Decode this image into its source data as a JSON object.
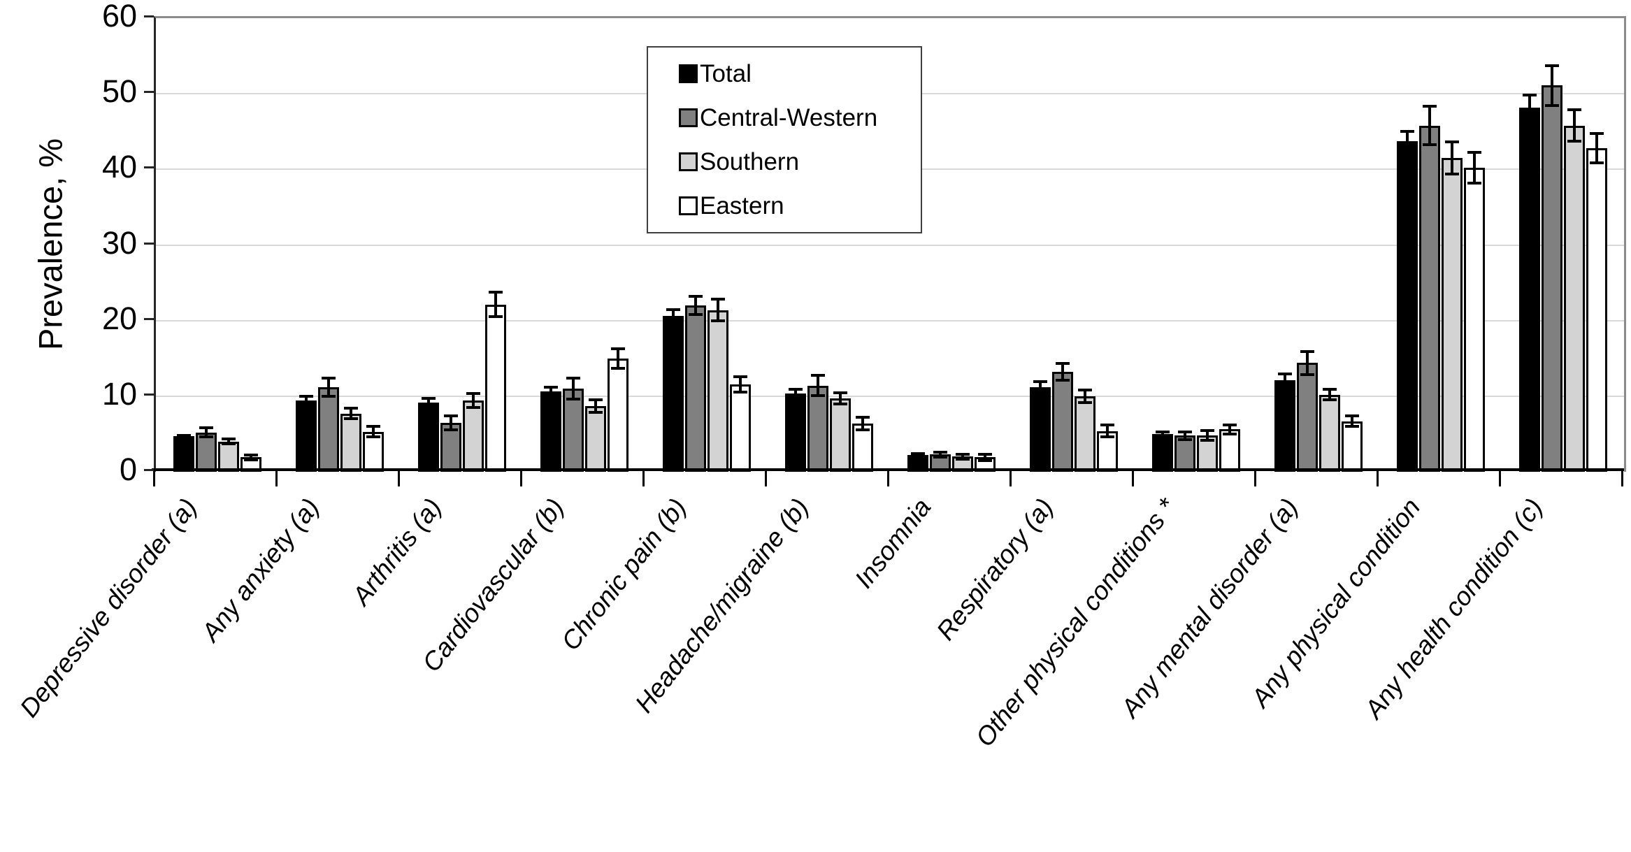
{
  "chart_data": {
    "type": "bar",
    "title": "",
    "ylabel": "Prevalence, %",
    "ylim": [
      0,
      60
    ],
    "yticks": [
      0,
      10,
      20,
      30,
      40,
      50,
      60
    ],
    "grid": true,
    "legend_position": "top-center-inside",
    "legend_entries": [
      "Total",
      "Central-Western",
      "Southern",
      "Eastern"
    ],
    "categories": [
      "Depressive disorder (a)",
      "Any anxiety (a)",
      "Arthritis (a)",
      "Cardiovascular (b)",
      "Chronic pain (b)",
      "Headache/migraine (b)",
      "Insomnia",
      "Respiratory (a)",
      "Other physical conditions *",
      "Any mental disorder (a)",
      "Any physical condition",
      "Any health condition (c)"
    ],
    "series": [
      {
        "name": "Total",
        "color": "#000000",
        "values": [
          4.7,
          9.4,
          9.2,
          10.6,
          20.6,
          10.4,
          2.2,
          11.2,
          5.0,
          12.1,
          43.7,
          48.2
        ],
        "errors": [
          0.3,
          0.8,
          0.7,
          0.8,
          1.0,
          0.7,
          0.4,
          0.9,
          0.5,
          1.0,
          1.5,
          1.8
        ]
      },
      {
        "name": "Central-Western",
        "color": "#808080",
        "values": [
          5.2,
          11.2,
          6.5,
          11.0,
          22.0,
          11.4,
          2.3,
          13.2,
          4.8,
          14.4,
          45.8,
          51.1
        ],
        "errors": [
          0.8,
          1.4,
          1.1,
          1.6,
          1.4,
          1.5,
          0.5,
          1.3,
          0.7,
          1.7,
          2.7,
          2.8
        ]
      },
      {
        "name": "Southern",
        "color": "#d3d3d3",
        "values": [
          4.0,
          7.7,
          9.4,
          8.7,
          21.4,
          9.7,
          2.0,
          10.0,
          4.8,
          10.2,
          41.5,
          45.8
        ],
        "errors": [
          0.5,
          0.9,
          1.1,
          1.0,
          1.6,
          0.9,
          0.5,
          1.0,
          0.8,
          0.9,
          2.3,
          2.3
        ]
      },
      {
        "name": "Eastern",
        "color": "#ffffff",
        "values": [
          1.9,
          5.3,
          22.1,
          15.0,
          11.6,
          6.4,
          1.9,
          5.4,
          5.6,
          6.7,
          40.2,
          42.8
        ],
        "errors": [
          0.5,
          0.9,
          1.8,
          1.5,
          1.2,
          1.0,
          0.6,
          1.0,
          0.8,
          0.9,
          2.2,
          2.1
        ]
      }
    ]
  }
}
